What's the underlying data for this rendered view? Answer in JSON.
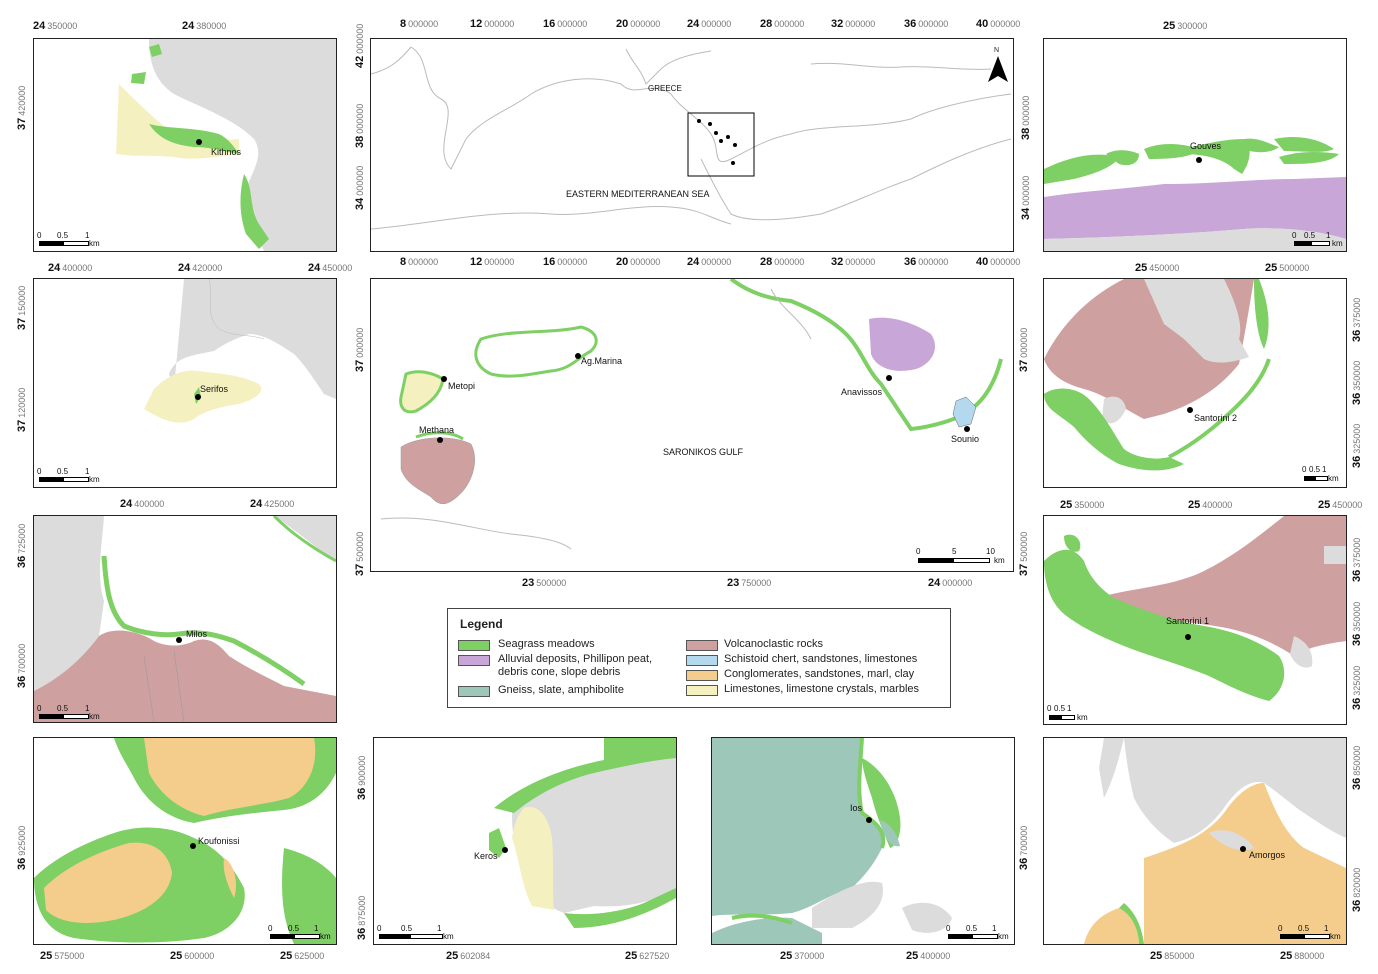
{
  "legend": {
    "title": "Legend",
    "items": [
      {
        "label": "Seagrass meadows",
        "color": "#7ecf64"
      },
      {
        "label": "Alluvial deposits, Phillipon peat, debris cone, slope debris",
        "color": "#c8a7d8"
      },
      {
        "label": "Gneiss, slate, amphibolite",
        "color": "#9dc7b8"
      },
      {
        "label": "Volcanoclastic rocks",
        "color": "#cfa0a0"
      },
      {
        "label": "Schistoid chert, sandstones, limestones",
        "color": "#b4d8ee"
      },
      {
        "label": "Conglomerates, sandstones, marl, clay",
        "color": "#f4cd8c"
      },
      {
        "label": "Limestones, limestone crystals, marbles",
        "color": "#f5f0bf"
      }
    ]
  },
  "colors": {
    "land": "#dcdcdc",
    "sea": "#ffffff",
    "seagrass": "#7ecf64",
    "volcanic": "#cfa0a0",
    "alluvial": "#c8a7d8",
    "gneiss": "#9dc7b8",
    "chert": "#b4d8ee",
    "conglomerate": "#f4cd8c",
    "limestone": "#f5f0bf"
  },
  "overview": {
    "top_ticks": [
      [
        "8",
        "000000"
      ],
      [
        "12",
        "000000"
      ],
      [
        "16",
        "000000"
      ],
      [
        "20",
        "000000"
      ],
      [
        "24",
        "000000"
      ],
      [
        "28",
        "000000"
      ],
      [
        "32",
        "000000"
      ],
      [
        "36",
        "000000"
      ],
      [
        "40",
        "000000"
      ]
    ],
    "left_ticks": [
      [
        "42",
        "000000"
      ],
      [
        "38",
        "000000"
      ],
      [
        "34",
        "000000"
      ]
    ],
    "country": "GREECE",
    "sea": "EASTERN MEDITERRANEAN SEA",
    "north": "N"
  },
  "saronikos": {
    "left_ticks": [
      [
        "37",
        "500000"
      ],
      [
        "37",
        "000000"
      ]
    ],
    "right_ticks": [
      [
        "37",
        "000000"
      ],
      [
        "37",
        "500000"
      ]
    ],
    "bottom_ticks": [
      [
        "23",
        "500000"
      ],
      [
        "23",
        "750000"
      ],
      [
        "24",
        "000000"
      ]
    ],
    "gulf": "SARONIKOS GULF",
    "sites": [
      "Ag.Marina",
      "Metopi",
      "Methana",
      "Anavissos",
      "Sounio"
    ],
    "scale": [
      "0",
      "5",
      "10",
      "km"
    ]
  },
  "kithnos": {
    "site": "Kithnos",
    "top_ticks": [
      [
        "24",
        "350000"
      ],
      [
        "24",
        "380000"
      ]
    ],
    "left_ticks": [
      [
        "37",
        "420000"
      ]
    ],
    "scale": [
      "0",
      "0.5",
      "1",
      "km"
    ]
  },
  "serifos": {
    "site": "Serifos",
    "top_ticks": [
      [
        "24",
        "400000"
      ],
      [
        "24",
        "420000"
      ],
      [
        "24",
        "450000"
      ]
    ],
    "left_ticks": [
      [
        "37",
        "150000"
      ],
      [
        "37",
        "120000"
      ]
    ],
    "scale": [
      "0",
      "0.5",
      "1",
      "km"
    ]
  },
  "milos": {
    "site": "Milos",
    "top_ticks": [
      [
        "24",
        "400000"
      ],
      [
        "24",
        "425000"
      ]
    ],
    "left_ticks": [
      [
        "36",
        "725000"
      ],
      [
        "36",
        "700000"
      ]
    ],
    "scale": [
      "0",
      "0.5",
      "1",
      "km"
    ]
  },
  "koufonissi": {
    "site": "Koufonissi",
    "bottom_ticks": [
      [
        "25",
        "575000"
      ],
      [
        "25",
        "600000"
      ],
      [
        "25",
        "625000"
      ]
    ],
    "left_ticks": [
      [
        "36",
        "925000"
      ]
    ],
    "scale": [
      "0",
      "0.5",
      "1",
      "km"
    ]
  },
  "keros": {
    "site": "Keros",
    "bottom_ticks": [
      [
        "25",
        "602084"
      ],
      [
        "25",
        "627520"
      ]
    ],
    "left_ticks": [
      [
        "36",
        "900000"
      ],
      [
        "36",
        "875000"
      ]
    ],
    "scale": [
      "0",
      "0.5",
      "1",
      "km"
    ]
  },
  "ios": {
    "site": "Ios",
    "bottom_ticks": [
      [
        "25",
        "370000"
      ],
      [
        "25",
        "400000"
      ]
    ],
    "right_ticks": [
      [
        "36",
        "700000"
      ]
    ],
    "scale": [
      "0",
      "0.5",
      "1",
      "km"
    ]
  },
  "gouves": {
    "site": "Gouves",
    "top_ticks": [
      [
        "25",
        "300000"
      ]
    ],
    "left_ticks": [
      [
        "38",
        "000000"
      ],
      [
        "34",
        "000000"
      ]
    ],
    "scale": [
      "0",
      "0.5",
      "1",
      "km"
    ]
  },
  "santorini2": {
    "site": "Santorini 2",
    "top_ticks": [
      [
        "25",
        "450000"
      ],
      [
        "25",
        "500000"
      ]
    ],
    "right_ticks": [
      [
        "36",
        "375000"
      ],
      [
        "36",
        "350000"
      ],
      [
        "36",
        "325000"
      ]
    ],
    "scale": [
      "0",
      "0.5",
      "1",
      "km"
    ]
  },
  "santorini1": {
    "site": "Santorini 1",
    "top_ticks": [
      [
        "25",
        "350000"
      ],
      [
        "25",
        "400000"
      ],
      [
        "25",
        "450000"
      ]
    ],
    "right_ticks": [
      [
        "36",
        "375000"
      ],
      [
        "36",
        "350000"
      ],
      [
        "36",
        "325000"
      ]
    ],
    "scale": [
      "0",
      "0.5",
      "1",
      "km"
    ]
  },
  "amorgos": {
    "site": "Amorgos",
    "bottom_ticks": [
      [
        "25",
        "850000"
      ],
      [
        "25",
        "880000"
      ]
    ],
    "right_ticks": [
      [
        "36",
        "850000"
      ],
      [
        "36",
        "820000"
      ]
    ],
    "scale": [
      "0",
      "0.5",
      "1",
      "km"
    ]
  }
}
